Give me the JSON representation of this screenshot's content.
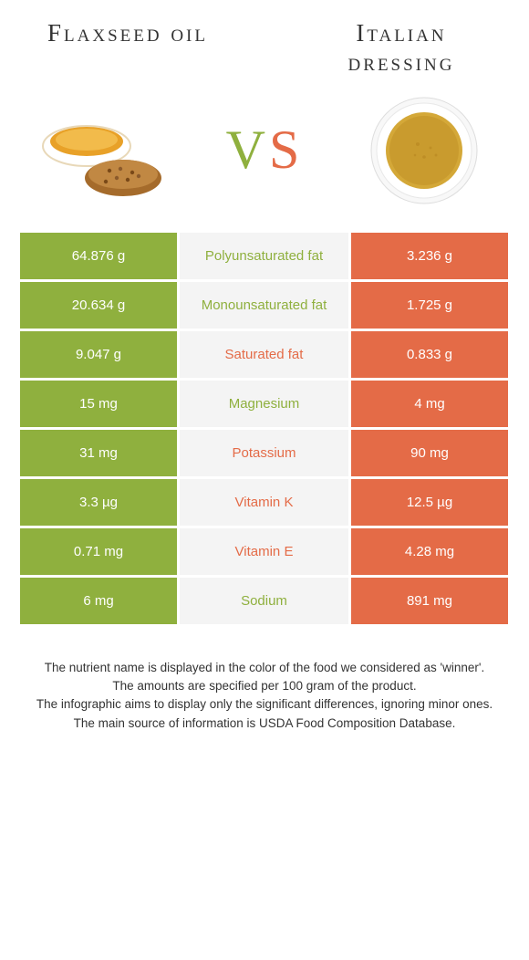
{
  "titles": {
    "left": "Flaxseed oil",
    "right": "Italian dressing"
  },
  "vs": {
    "v": "V",
    "s": "S"
  },
  "colors": {
    "green": "#8fb03e",
    "orange": "#e46b47",
    "lightgrey": "#f4f4f4"
  },
  "rows": [
    {
      "left": "64.876 g",
      "mid": "Polyunsaturated fat",
      "right": "3.236 g",
      "winner": "green"
    },
    {
      "left": "20.634 g",
      "mid": "Monounsaturated fat",
      "right": "1.725 g",
      "winner": "green"
    },
    {
      "left": "9.047 g",
      "mid": "Saturated fat",
      "right": "0.833 g",
      "winner": "orange"
    },
    {
      "left": "15 mg",
      "mid": "Magnesium",
      "right": "4 mg",
      "winner": "green"
    },
    {
      "left": "31 mg",
      "mid": "Potassium",
      "right": "90 mg",
      "winner": "orange"
    },
    {
      "left": "3.3 µg",
      "mid": "Vitamin K",
      "right": "12.5 µg",
      "winner": "orange"
    },
    {
      "left": "0.71 mg",
      "mid": "Vitamin E",
      "right": "4.28 mg",
      "winner": "orange"
    },
    {
      "left": "6 mg",
      "mid": "Sodium",
      "right": "891 mg",
      "winner": "green"
    }
  ],
  "footer": {
    "l1": "The nutrient name is displayed in the color of the food we considered as 'winner'.",
    "l2": "The amounts are specified per 100 gram of the product.",
    "l3": "The infographic aims to display only the significant differences, ignoring minor ones.",
    "l4": "The main source of information is USDA Food Composition Database."
  }
}
